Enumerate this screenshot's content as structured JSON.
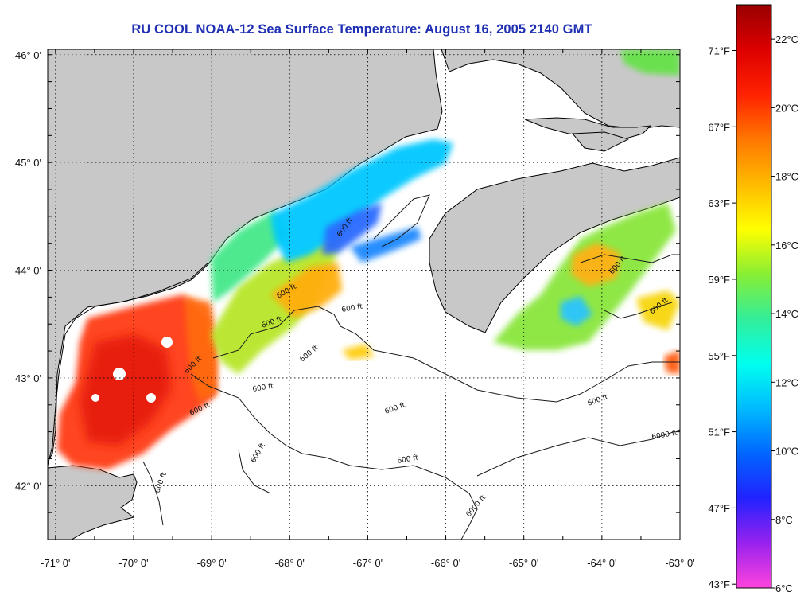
{
  "title": "RU COOL  NOAA-12  Sea Surface Temperature:  August 16, 2005 2140 GMT",
  "map": {
    "lon_range": [
      -71.1,
      -63.0
    ],
    "lat_range": [
      41.5,
      46.05
    ],
    "x_ticks": [
      {
        "value": -71,
        "label": "-71° 0'"
      },
      {
        "value": -70,
        "label": "-70° 0'"
      },
      {
        "value": -69,
        "label": "-69° 0'"
      },
      {
        "value": -68,
        "label": "-68° 0'"
      },
      {
        "value": -67,
        "label": "-67° 0'"
      },
      {
        "value": -66,
        "label": "-66° 0'"
      },
      {
        "value": -65,
        "label": "-65° 0'"
      },
      {
        "value": -64,
        "label": "-64° 0'"
      },
      {
        "value": -63,
        "label": "-63° 0'"
      }
    ],
    "y_ticks": [
      {
        "value": 46,
        "label": "46° 0'"
      },
      {
        "value": 45,
        "label": "45° 0'"
      },
      {
        "value": 44,
        "label": "44° 0'"
      },
      {
        "value": 43,
        "label": "43° 0'"
      },
      {
        "value": 42,
        "label": "42° 0'"
      }
    ],
    "contour_labels": [
      "600 ft",
      "600 ft",
      "600 ft",
      "600 ft",
      "600 ft",
      "600 ft",
      "600 ft",
      "600 ft",
      "600 ft",
      "600 ft",
      "600 ft",
      "600 ft",
      "600 ft",
      "600 ft",
      "600 ft",
      "6000 ft",
      "6000 ft"
    ],
    "colors": {
      "land": "#c8c8c8",
      "water": "#ffffff",
      "frame": "#000000"
    }
  },
  "legend": {
    "celsius_range": [
      6,
      23
    ],
    "celsius_labels": [
      "22°C",
      "20°C",
      "18°C",
      "16°C",
      "14°C",
      "12°C",
      "10°C",
      "8°C",
      "6°C"
    ],
    "celsius_values": [
      22,
      20,
      18,
      16,
      14,
      12,
      10,
      8,
      6
    ],
    "fahrenheit_labels": [
      "71°F",
      "67°F",
      "63°F",
      "59°F",
      "55°F",
      "51°F",
      "47°F",
      "43°F"
    ],
    "fahrenheit_values": [
      71,
      67,
      63,
      59,
      55,
      51,
      47,
      43
    ],
    "color_stops": [
      "#ff44dd",
      "#9922ee",
      "#2222ff",
      "#0066ff",
      "#00bbff",
      "#00ffee",
      "#33ee99",
      "#88ee33",
      "#ffff00",
      "#ffbb00",
      "#ff7700",
      "#ff2200",
      "#dd0000",
      "#990000"
    ]
  }
}
